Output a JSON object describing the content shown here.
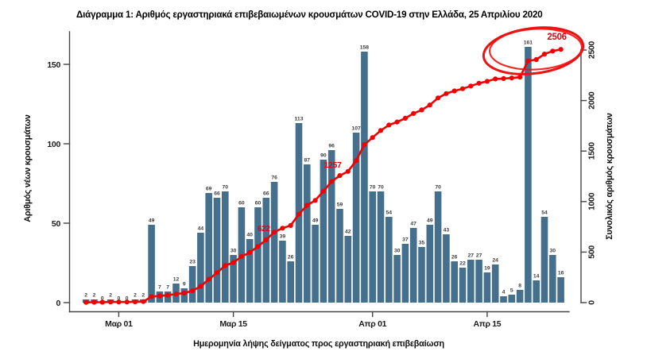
{
  "chart_data": {
    "type": "combo-bar-line",
    "title": "Διάγραμμα 1: Αριθμός εργαστηριακά επιβεβαιωμένων κρουσμάτων COVID-19 στην Ελλάδα, 25 Απριλίου 2020",
    "xlabel": "Ημερομηνία λήψης δείγματος προς εργαστηριακή επιβεβαίωση",
    "y_left": {
      "label": "Αριθμός νέων κρουσμάτων",
      "ticks": [
        0,
        50,
        100,
        150
      ],
      "range": [
        0,
        170
      ]
    },
    "y_right": {
      "label": "Συνολικός αριθμός κρουσμάτων",
      "ticks": [
        0,
        500,
        1000,
        1500,
        2000,
        2500
      ],
      "range": [
        0,
        2640
      ]
    },
    "x_ticks": [
      {
        "label": "Μαρ 01",
        "index": 4
      },
      {
        "label": "Μαρ 15",
        "index": 18
      },
      {
        "label": "Απρ 01",
        "index": 35
      },
      {
        "label": "Απρ 15",
        "index": 49
      }
    ],
    "series": [
      {
        "name": "daily_new_cases",
        "kind": "bar",
        "values": [
          2,
          2,
          0,
          2,
          0,
          0,
          2,
          2,
          49,
          7,
          7,
          12,
          9,
          23,
          44,
          69,
          66,
          70,
          30,
          60,
          40,
          60,
          66,
          76,
          39,
          26,
          113,
          87,
          49,
          90,
          96,
          59,
          42,
          107,
          158,
          70,
          70,
          54,
          30,
          37,
          47,
          35,
          49,
          70,
          43,
          26,
          22,
          27,
          27,
          19,
          24,
          4,
          5,
          8,
          161,
          14,
          54,
          30,
          16
        ]
      },
      {
        "name": "cumulative_cases",
        "kind": "line",
        "values": [
          2,
          4,
          4,
          6,
          6,
          6,
          8,
          10,
          59,
          66,
          73,
          85,
          94,
          117,
          161,
          230,
          296,
          366,
          396,
          456,
          496,
          556,
          622,
          698,
          737,
          763,
          876,
          963,
          1012,
          1102,
          1198,
          1257,
          1299,
          1406,
          1564,
          1634,
          1704,
          1758,
          1788,
          1825,
          1872,
          1907,
          1956,
          2026,
          2069,
          2095,
          2117,
          2144,
          2171,
          2190,
          2214,
          2218,
          2223,
          2231,
          2392,
          2406,
          2460,
          2490,
          2506
        ]
      }
    ],
    "annotations": [
      {
        "text": "622",
        "index": 22,
        "value": 622
      },
      {
        "text": "1257",
        "index": 31,
        "value": 1257
      },
      {
        "text": "2506",
        "index": 58,
        "value": 2506
      }
    ],
    "highlight_ellipse": true,
    "grid": false,
    "legend": null,
    "colors": {
      "bar": "#44708E",
      "line": "#F20000",
      "annotation": "#E4000F",
      "highlight": "#EE1111",
      "bar_label": "#3D3D3D",
      "axis": "#454545"
    }
  }
}
